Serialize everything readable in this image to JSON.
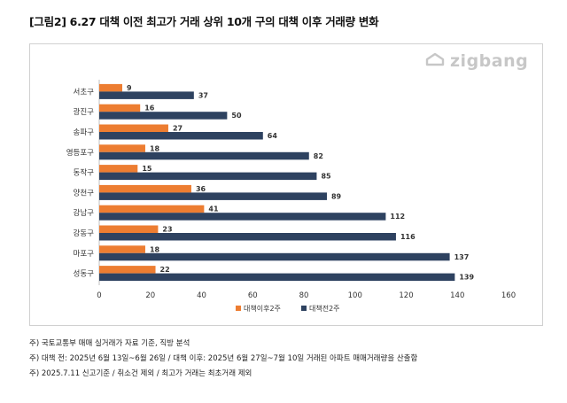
{
  "title": "[그림2] 6.27 대책 이전 최고가 거래 상위 10개 구의 대책 이후 거래량 변화",
  "logo_text": "zigbang",
  "notes": [
    "주) 국토교통부 매매 실거래가 자료 기준, 직방 분석",
    "주) 대책 전: 2025년 6월 13일~6월 26일 / 대책 이후: 2025년 6월 27일~7월 10일 거래된 아파트 매매거래량을 산출함",
    "주) 2025.7.11 신고기준 / 취소건 제외 / 최고가 거래는 최초거래 제외"
  ],
  "chart_data": {
    "type": "bar",
    "orientation": "horizontal",
    "categories": [
      "서초구",
      "광진구",
      "송파구",
      "영등포구",
      "동작구",
      "양천구",
      "강남구",
      "강동구",
      "마포구",
      "성동구"
    ],
    "series": [
      {
        "name": "대책이후2주",
        "color": "#ed7d31",
        "values": [
          9,
          16,
          27,
          18,
          15,
          36,
          41,
          23,
          18,
          22
        ]
      },
      {
        "name": "대책전2주",
        "color": "#2e4260",
        "values": [
          37,
          50,
          64,
          82,
          85,
          89,
          112,
          116,
          137,
          139
        ]
      }
    ],
    "xlim": [
      0,
      160
    ],
    "xticks": [
      0,
      20,
      40,
      60,
      80,
      100,
      120,
      140,
      160
    ],
    "grid": false,
    "legend_position": "bottom"
  }
}
